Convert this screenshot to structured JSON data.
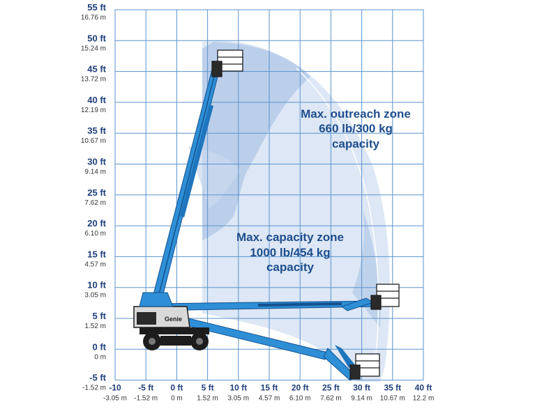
{
  "colors": {
    "grid": "#5a93cf",
    "label_blue": "#1f3f7a",
    "zone_outer": "#dbe6f4",
    "zone_inner": "#b8cde9",
    "boom_blue": "#2e8fd6",
    "boom_dark": "#15518f",
    "chassis": "#1d1d1d"
  },
  "y_axis": [
    {
      "ft": "55 ft",
      "m": "16.76 m"
    },
    {
      "ft": "50 ft",
      "m": "15.24 m"
    },
    {
      "ft": "45 ft",
      "m": "13.72 m"
    },
    {
      "ft": "40 ft",
      "m": "12.19 m"
    },
    {
      "ft": "35 ft",
      "m": "10.67 m"
    },
    {
      "ft": "30 ft",
      "m": "9.14 m"
    },
    {
      "ft": "25 ft",
      "m": "7.62 m"
    },
    {
      "ft": "20 ft",
      "m": "6.10 m"
    },
    {
      "ft": "15 ft",
      "m": "4.57 m"
    },
    {
      "ft": "10 ft",
      "m": "3.05 m"
    },
    {
      "ft": "5 ft",
      "m": "1.52 m"
    },
    {
      "ft": "0 ft",
      "m": "0 m"
    },
    {
      "ft": "-5 ft",
      "m": "-1.52 m"
    }
  ],
  "x_axis": [
    {
      "ft": "-10",
      "m": "-3.05 m"
    },
    {
      "ft": "-5 ft",
      "m": "-1.52 m"
    },
    {
      "ft": "0 ft",
      "m": "0 m"
    },
    {
      "ft": "5 ft",
      "m": "1.52 m"
    },
    {
      "ft": "10 ft",
      "m": "3.05 m"
    },
    {
      "ft": "15 ft",
      "m": "4.57 m"
    },
    {
      "ft": "20 ft",
      "m": "6.10 m"
    },
    {
      "ft": "25 ft",
      "m": "7.62 m"
    },
    {
      "ft": "30 ft",
      "m": "9.14 m"
    },
    {
      "ft": "35 ft",
      "m": "10.67 m"
    },
    {
      "ft": "40 ft",
      "m": "12.2 m"
    }
  ],
  "zones": {
    "outreach": {
      "line1": "Max. outreach zone",
      "line2": "660 lb/300 kg",
      "line3": "capacity"
    },
    "capacity": {
      "line1": "Max. capacity zone",
      "line2": "1000 lb/454 kg",
      "line3": "capacity"
    }
  },
  "brand": "Genie"
}
